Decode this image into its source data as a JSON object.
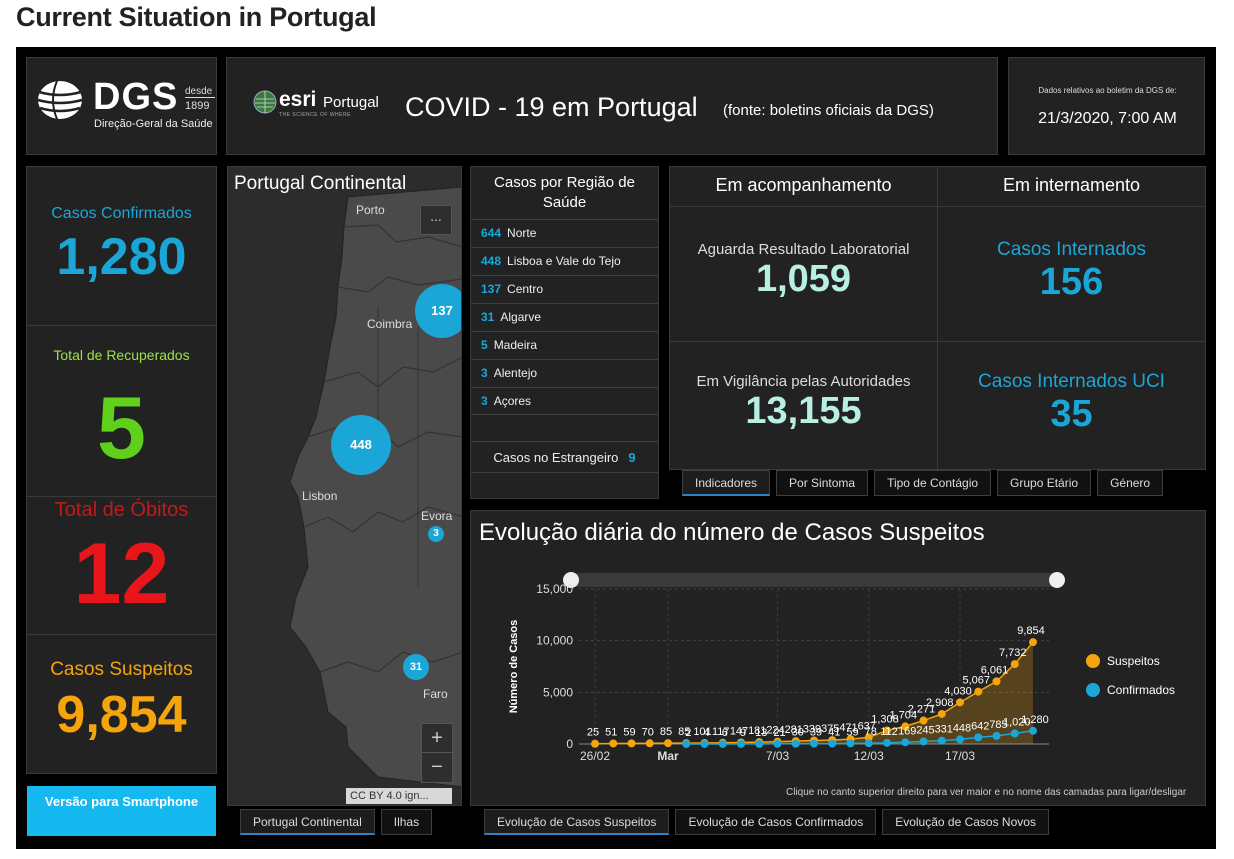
{
  "page_title": "Current Situation in Portugal",
  "header": {
    "dgs_logo": "DGS",
    "dgs_desde": "desde",
    "dgs_year": "1899",
    "dgs_subtitle": "Direção-Geral da Saúde",
    "esri": "esri",
    "esri_portugal": "Portugal",
    "esri_tagline": "THE SCIENCE OF WHERE",
    "title": "COVID - 19 em Portugal",
    "source": "(fonte: boletins oficiais da DGS)",
    "date_label": "Dados relativos ao boletim da DGS de:",
    "date_value": "21/3/2020, 7:00 AM"
  },
  "stats": {
    "confirmed_label": "Casos Confirmados",
    "confirmed_value": "1,280",
    "recovered_label": "Total de Recuperados",
    "recovered_value": "5",
    "deaths_label": "Total de Óbitos",
    "deaths_value": "12",
    "suspect_label": "Casos Suspeitos",
    "suspect_value": "9,854",
    "colors": {
      "confirmed": "#1ba6d8",
      "recovered": "#5fd11a",
      "deaths": "#e8161a",
      "suspect": "#f5a40b"
    }
  },
  "smartphone_button": "Versão para Smartphone",
  "map": {
    "title": "Portugal Continental",
    "more": "...",
    "zoom_in": "+",
    "zoom_out": "−",
    "attribution": "CC BY 4.0 ign...",
    "cities": [
      "Porto",
      "Coimbra",
      "Lisbon",
      "Evora",
      "Faro"
    ],
    "clusters": [
      "137",
      "448",
      "3",
      "31"
    ],
    "tabs": [
      "Portugal Continental",
      "Ilhas"
    ]
  },
  "regions": {
    "title": "Casos por Região de Saúde",
    "items": [
      {
        "count": "644",
        "name": "Norte"
      },
      {
        "count": "448",
        "name": "Lisboa e Vale do Tejo"
      },
      {
        "count": "137",
        "name": "Centro"
      },
      {
        "count": "31",
        "name": "Algarve"
      },
      {
        "count": "5",
        "name": "Madeira"
      },
      {
        "count": "3",
        "name": "Alentejo"
      },
      {
        "count": "3",
        "name": "Açores"
      }
    ],
    "abroad_label": "Casos no Estrangeiro",
    "abroad_count": "9"
  },
  "indicators": {
    "col1_header": "Em acompanhamento",
    "col2_header": "Em internamento",
    "awaiting_label": "Aguarda Resultado Laboratorial",
    "awaiting_value": "1,059",
    "surveillance_label": "Em Vigilância pelas Autoridades",
    "surveillance_value": "13,155",
    "hospital_label": "Casos Internados",
    "hospital_value": "156",
    "icu_label": "Casos Internados UCI",
    "icu_value": "35",
    "tabs": [
      "Indicadores",
      "Por Sintoma",
      "Tipo de Contágio",
      "Grupo Etário",
      "Género"
    ]
  },
  "chart_section": {
    "title": "Evolução diária do número de Casos Suspeitos",
    "note": "Clique no canto superior direito para ver maior e no nome das camadas para ligar/desligar",
    "tabs": [
      "Evolução de Casos Suspeitos",
      "Evolução de Casos Confirmados",
      "Evolução de Casos Novos"
    ]
  },
  "chart_data": {
    "type": "line",
    "ylabel": "Número de Casos",
    "ylim": [
      0,
      15000
    ],
    "yticks": [
      "0",
      "5,000",
      "10,000",
      "15,000"
    ],
    "xtick_labels": [
      "26/02",
      "Mar",
      "7/03",
      "12/03",
      "17/03"
    ],
    "x": [
      "26/02",
      "27/02",
      "28/02",
      "29/02",
      "01/03",
      "02/03",
      "03/03",
      "04/03",
      "05/03",
      "06/03",
      "07/03",
      "08/03",
      "09/03",
      "10/03",
      "11/03",
      "12/03",
      "13/03",
      "14/03",
      "15/03",
      "16/03",
      "17/03",
      "18/03",
      "19/03",
      "20/03",
      "21/03"
    ],
    "series": [
      {
        "name": "Suspeitos",
        "color": "#f5a40b",
        "values": [
          25,
          51,
          59,
          70,
          85,
          85,
          101,
          117,
          147,
          181,
          224,
          281,
          339,
          375,
          471,
          637,
          1308,
          1704,
          2271,
          2908,
          4030,
          5067,
          6061,
          7732,
          9854
        ],
        "labels": [
          "25",
          "51",
          "59",
          "70",
          "85",
          "85",
          "101",
          "117",
          "147",
          "181",
          "224",
          "281",
          "339",
          "375",
          "471",
          "637",
          "1,308",
          "1,704",
          "2,271",
          "2,908",
          "4,030",
          "5,067",
          "6,061",
          "7,732",
          "9,854"
        ]
      },
      {
        "name": "Confirmados",
        "color": "#1ba6d8",
        "values": [
          null,
          null,
          null,
          null,
          null,
          2,
          4,
          6,
          9,
          13,
          21,
          30,
          39,
          41,
          59,
          78,
          112,
          169,
          245,
          331,
          448,
          642,
          785,
          1020,
          1280
        ],
        "labels": [
          "",
          "",
          "",
          "",
          "",
          "2",
          "4",
          "6",
          "9",
          "13",
          "21",
          "30",
          "39",
          "41",
          "59",
          "78",
          "112",
          "169",
          "245",
          "331",
          "448",
          "642",
          "785",
          "1,020",
          "1,280"
        ]
      }
    ],
    "legend_position": "right"
  }
}
